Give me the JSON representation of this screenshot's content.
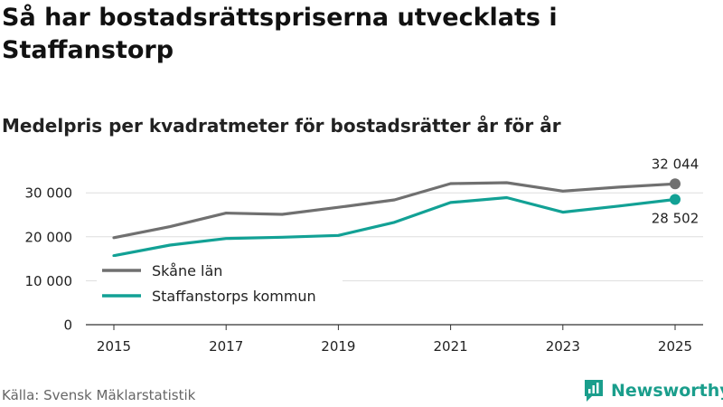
{
  "title": "Så har bostadsrättspriserna utvecklats i Staffanstorp",
  "subtitle": "Medelpris per kvadratmeter för bostadsrätter år för år",
  "source": "Källa: Svensk Mäklarstatistik",
  "brand": "Newsworthy",
  "colors": {
    "series1": "#707070",
    "series2": "#12a195",
    "grid": "#dddddd",
    "brand": "#1a9e8c"
  },
  "chart_data": {
    "type": "line",
    "title": "Så har bostadsrättspriserna utvecklats i Staffanstorp",
    "subtitle": "Medelpris per kvadratmeter för bostadsrätter år för år",
    "xlabel": "",
    "ylabel": "",
    "x": [
      2015,
      2016,
      2017,
      2018,
      2019,
      2020,
      2021,
      2022,
      2023,
      2024,
      2025
    ],
    "xticks": [
      2015,
      2017,
      2019,
      2021,
      2023,
      2025
    ],
    "xtick_labels": [
      "2015",
      "2017",
      "2019",
      "2021",
      "2023",
      "2025"
    ],
    "yticks": [
      0,
      10000,
      20000,
      30000
    ],
    "ytick_labels": [
      "0",
      "10 000",
      "20 000",
      "30 000"
    ],
    "ylim": [
      0,
      36000
    ],
    "grid": true,
    "legend_position": "bottom-left",
    "series": [
      {
        "name": "Skåne län",
        "color": "#707070",
        "values": [
          19800,
          22300,
          25400,
          25100,
          26700,
          28400,
          32100,
          32300,
          30400,
          31300,
          32044
        ],
        "end_label": "32 044"
      },
      {
        "name": "Staffanstorps kommun",
        "color": "#12a195",
        "values": [
          15700,
          18100,
          19600,
          19900,
          20300,
          23300,
          27800,
          28900,
          25600,
          27000,
          28502
        ],
        "end_label": "28 502"
      }
    ]
  }
}
